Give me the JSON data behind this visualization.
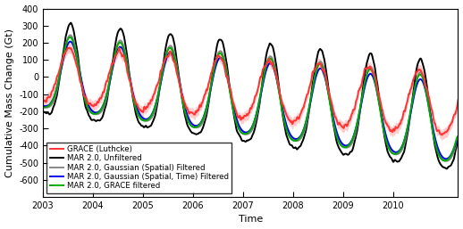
{
  "title": "",
  "xlabel": "Time",
  "ylabel": "Cumulative Mass Change (Gt)",
  "ylim": [
    -700,
    400
  ],
  "xlim": [
    2003.0,
    2011.3
  ],
  "yticks": [
    -600,
    -500,
    -400,
    -300,
    -200,
    -100,
    0,
    100,
    200,
    300,
    400
  ],
  "xticks": [
    2003,
    2004,
    2005,
    2006,
    2007,
    2008,
    2009,
    2010
  ],
  "legend_labels": [
    "GRACE (Luthcke)",
    "MAR 2.0, Unfiltered",
    "MAR 2.0, Gaussian (Spatial) Filtered",
    "MAR 2.0, Gaussian (Spatial, Time) Filtered",
    "MAR 2.0, GRACE filtered"
  ],
  "colors": {
    "grace": "#FF3333",
    "unfiltered": "#000000",
    "gaussian_spatial": "#888888",
    "gaussian_spatial_time": "#0000EE",
    "grace_filtered": "#00AA00"
  },
  "grace_fill_alpha": 0.25,
  "linewidth_thick": 1.4,
  "linewidth_thin": 1.0,
  "figsize": [
    5.18,
    2.57
  ],
  "dpi": 100,
  "legend_fontsize": 6.2,
  "axis_fontsize": 8,
  "tick_fontsize": 7
}
